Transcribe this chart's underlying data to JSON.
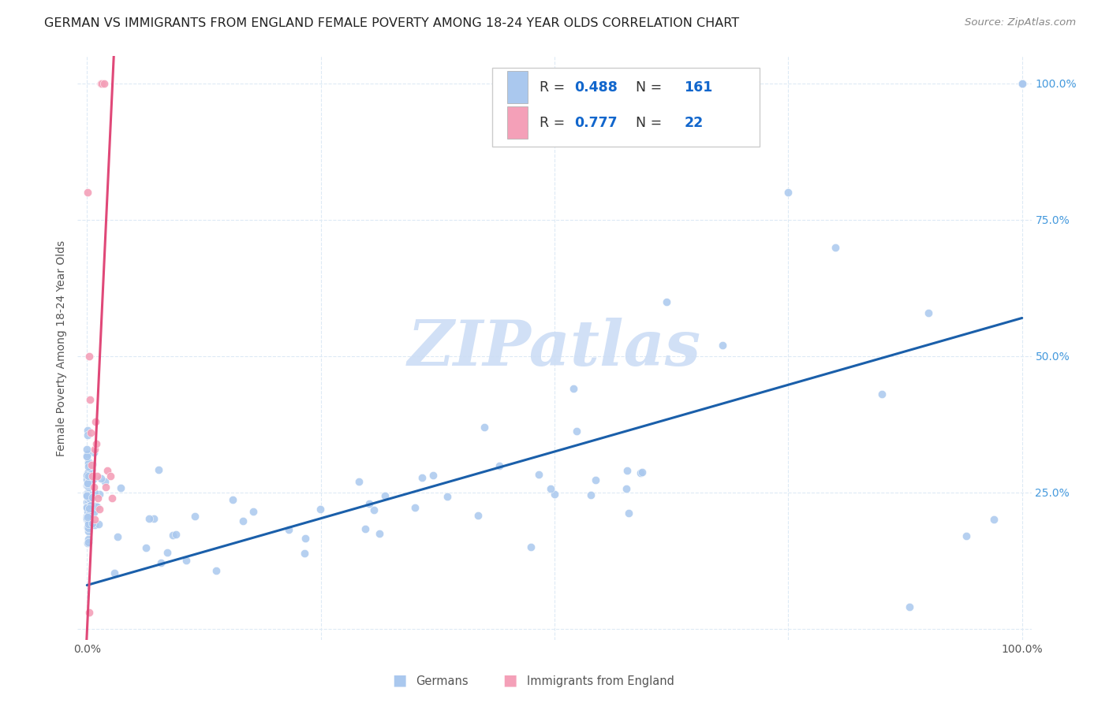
{
  "title": "GERMAN VS IMMIGRANTS FROM ENGLAND FEMALE POVERTY AMONG 18-24 YEAR OLDS CORRELATION CHART",
  "source": "Source: ZipAtlas.com",
  "ylabel": "Female Poverty Among 18-24 Year Olds",
  "blue_R": 0.488,
  "blue_N": 161,
  "pink_R": 0.777,
  "pink_N": 22,
  "blue_color": "#aac8ee",
  "pink_color": "#f4a0b8",
  "blue_line_color": "#1a5faa",
  "pink_line_color": "#e04878",
  "watermark_color": "#ccddf5",
  "background_color": "#ffffff",
  "grid_color": "#ddeaf5",
  "title_fontsize": 11.5,
  "axis_label_fontsize": 10,
  "tick_fontsize": 10,
  "right_tick_color": "#4499dd",
  "legend_text_color": "#333333",
  "legend_value_color": "#1166cc"
}
